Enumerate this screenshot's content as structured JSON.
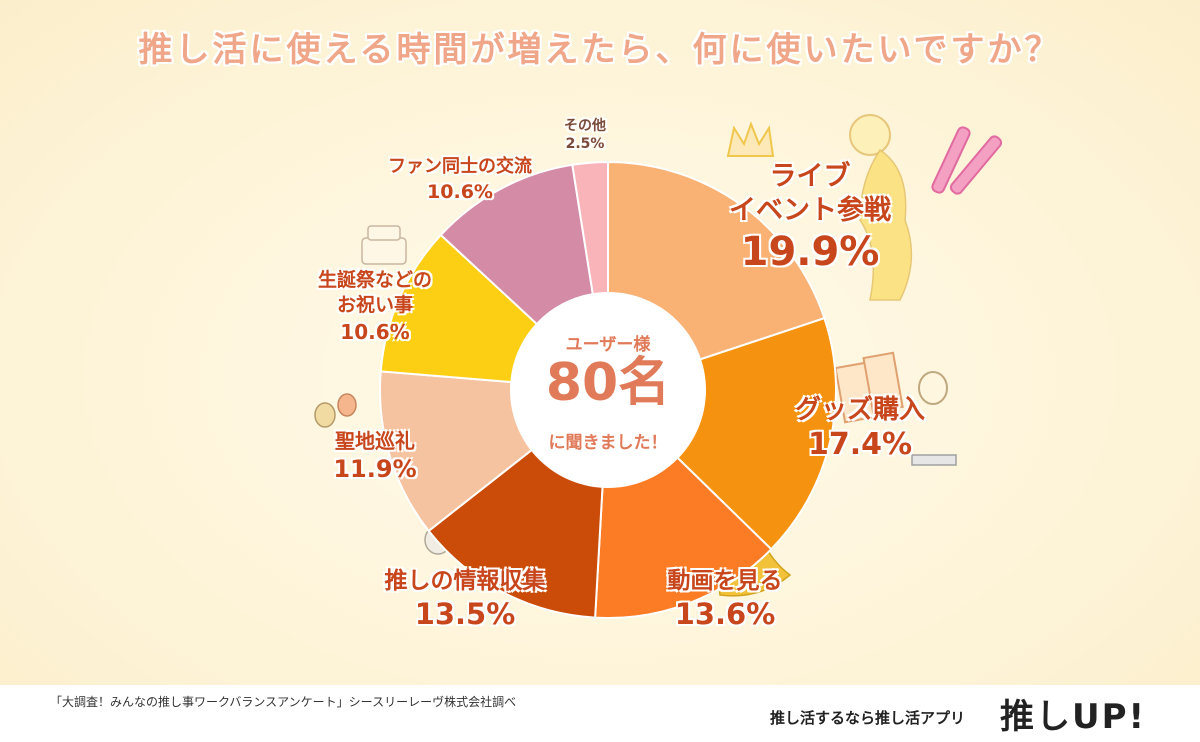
{
  "header": {
    "title": "推し活に使える時間が増えたら、何に使いたいですか？"
  },
  "center": {
    "top": "ユーザー様",
    "number": "80名",
    "bottom": "に聞きました！"
  },
  "chart_data": {
    "type": "pie",
    "title": "推し活に使える時間が増えたら、何に使いたいですか？",
    "unit": "%",
    "slices": [
      {
        "label": "ライブ\nイベント参戦",
        "value": 19.9,
        "display": "19.9%",
        "color": "#f9b174"
      },
      {
        "label": "グッズ購入",
        "value": 17.4,
        "display": "17.4%",
        "color": "#f5920f"
      },
      {
        "label": "動画を見る",
        "value": 13.6,
        "display": "13.6%",
        "color": "#fb7c25"
      },
      {
        "label": "推しの情報収集",
        "value": 13.5,
        "display": "13.5%",
        "color": "#cb4c08"
      },
      {
        "label": "聖地巡礼",
        "value": 11.9,
        "display": "11.9%",
        "color": "#f6c3a0"
      },
      {
        "label": "生誕祭などの\nお祝い事",
        "value": 10.6,
        "display": "10.6%",
        "color": "#fccf14"
      },
      {
        "label": "ファン同士の交流",
        "value": 10.6,
        "display": "10.6%",
        "color": "#d48ba6"
      },
      {
        "label": "その他",
        "value": 2.5,
        "display": "2.5%",
        "color": "#f9b4b9"
      }
    ]
  },
  "footer": {
    "source": "「大調査！みんなの推し事ワークバランスアンケート」シースリーレーヴ株式会社調べ",
    "tagline": "推し活するなら推し活アプリ",
    "logo_text": "推しUP!"
  }
}
